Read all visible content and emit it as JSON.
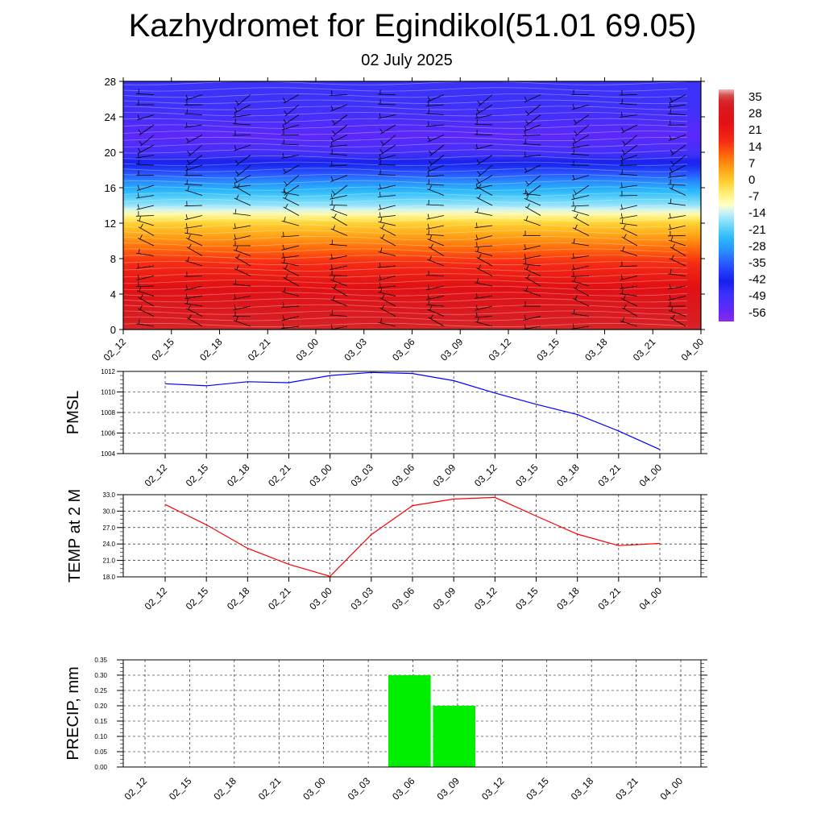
{
  "title": "Kazhydromet for Egindikol(51.01 69.05)",
  "subtitle": "02 July 2025",
  "time_labels": [
    "02_12",
    "02_15",
    "02_18",
    "02_21",
    "03_00",
    "03_03",
    "03_06",
    "03_09",
    "03_12",
    "03_15",
    "03_18",
    "03_21",
    "04_00"
  ],
  "chart_data": [
    {
      "type": "heatmap",
      "title": "",
      "x": [
        "02_12",
        "02_15",
        "02_18",
        "02_21",
        "03_00",
        "03_03",
        "03_06",
        "03_09",
        "03_12",
        "03_15",
        "03_18",
        "03_21",
        "04_00"
      ],
      "ylim": [
        0,
        28
      ],
      "yticks": [
        0,
        4,
        8,
        12,
        16,
        20,
        24,
        28
      ],
      "colorbar_labels": [
        "35",
        "28",
        "21",
        "14",
        "7",
        "0",
        "-7",
        "-14",
        "-21",
        "-28",
        "-35",
        "-42",
        "-49",
        "-56"
      ],
      "temperature_profile_by_height": [
        {
          "height": 0,
          "value": 33
        },
        {
          "height": 2,
          "value": 30
        },
        {
          "height": 4,
          "value": 26
        },
        {
          "height": 6,
          "value": 20
        },
        {
          "height": 8,
          "value": 14
        },
        {
          "height": 10,
          "value": 6
        },
        {
          "height": 12,
          "value": -2
        },
        {
          "height": 13,
          "value": -10
        },
        {
          "height": 14,
          "value": -18
        },
        {
          "height": 16,
          "value": -28
        },
        {
          "height": 18,
          "value": -40
        },
        {
          "height": 20,
          "value": -52
        },
        {
          "height": 22,
          "value": -56
        },
        {
          "height": 24,
          "value": -52
        },
        {
          "height": 26,
          "value": -50
        },
        {
          "height": 28,
          "value": -50
        }
      ],
      "wind_barbs": true
    },
    {
      "type": "line",
      "ylabel": "PMSL",
      "x": [
        "02_12",
        "02_15",
        "02_18",
        "02_21",
        "03_00",
        "03_03",
        "03_06",
        "03_09",
        "03_12",
        "03_15",
        "03_18",
        "03_21",
        "04_00"
      ],
      "ylim": [
        1004,
        1012
      ],
      "yticks": [
        "1004",
        "1006",
        "1008",
        "1010",
        "1012"
      ],
      "series": [
        {
          "values": [
            1010.8,
            1010.6,
            1011.0,
            1010.9,
            1011.6,
            1011.9,
            1011.8,
            1011.1,
            1009.9,
            1008.8,
            1007.8,
            1006.2,
            1004.4
          ],
          "color": "#0000ff"
        }
      ]
    },
    {
      "type": "line",
      "ylabel": "TEMP at 2 M",
      "x": [
        "02_12",
        "02_15",
        "02_18",
        "02_21",
        "03_00",
        "03_03",
        "03_06",
        "03_09",
        "03_12",
        "03_15",
        "03_18",
        "03_21",
        "04_00"
      ],
      "ylim": [
        18,
        33
      ],
      "yticks": [
        "18.0",
        "21.0",
        "24.0",
        "27.0",
        "30.0",
        "33.0"
      ],
      "series": [
        {
          "values": [
            31.2,
            27.5,
            23.2,
            20.3,
            18.1,
            25.7,
            31.0,
            32.2,
            32.5,
            29.1,
            25.8,
            23.7,
            24.1
          ],
          "color": "#ff0000"
        }
      ]
    },
    {
      "type": "bar",
      "ylabel": "PRECIP, mm",
      "categories": [
        "02_12",
        "02_15",
        "02_18",
        "02_21",
        "03_00",
        "03_03",
        "03_06",
        "03_09",
        "03_12",
        "03_15",
        "03_18",
        "03_21",
        "04_00"
      ],
      "ylim": [
        0,
        0.35
      ],
      "yticks": [
        "0.00",
        "0.05",
        "0.10",
        "0.15",
        "0.20",
        "0.25",
        "0.30",
        "0.35"
      ],
      "values": [
        0,
        0,
        0,
        0,
        0,
        0,
        0.3,
        0.2,
        0,
        0,
        0,
        0,
        0
      ],
      "color": "#00ee00"
    }
  ]
}
